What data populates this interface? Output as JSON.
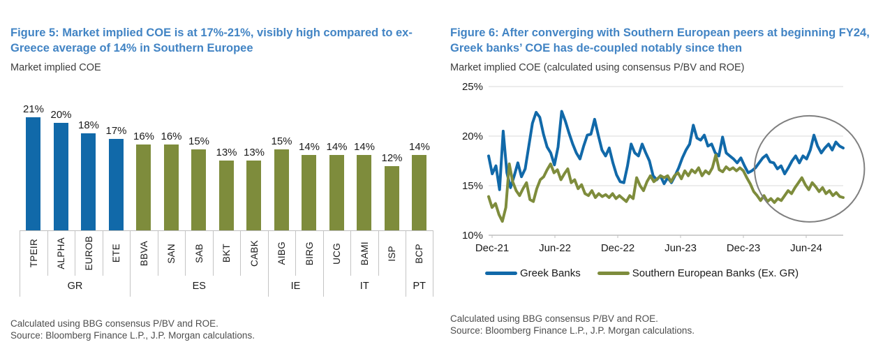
{
  "figure5": {
    "title": "Figure 5: Market implied COE is at 17%-21%, visibly high compared to ex-Greece average of 14% in Southern Europee",
    "subtitle": "Market implied COE",
    "footnotes": [
      "Calculated using BBG consensus P/BV and ROE.",
      "Source: Bloomberg Finance L.P., J.P. Morgan calculations."
    ],
    "chart_data": {
      "type": "bar",
      "title": "Market implied COE",
      "categories": [
        "TPEIR",
        "ALPHA",
        "EUROB",
        "ETE",
        "BBVA",
        "SAN",
        "SAB",
        "BKT",
        "CABK",
        "AIBG",
        "BIRG",
        "UCG",
        "BAMI",
        "ISP",
        "BCP"
      ],
      "values": [
        21,
        20,
        18,
        17,
        16,
        16,
        15,
        13,
        13,
        15,
        14,
        14,
        14,
        12,
        14
      ],
      "value_labels": [
        "21%",
        "20%",
        "18%",
        "17%",
        "16%",
        "16%",
        "15%",
        "13%",
        "13%",
        "15%",
        "14%",
        "14%",
        "14%",
        "12%",
        "14%"
      ],
      "groups": [
        {
          "label": "GR",
          "count": 4,
          "color": "#1169a9"
        },
        {
          "label": "ES",
          "count": 5,
          "color": "#7e8c3c"
        },
        {
          "label": "IE",
          "count": 2,
          "color": "#7e8c3c"
        },
        {
          "label": "IT",
          "count": 3,
          "color": "#7e8c3c"
        },
        {
          "label": "PT",
          "count": 1,
          "color": "#7e8c3c"
        }
      ],
      "ylim": [
        0,
        21
      ],
      "unit": "%"
    }
  },
  "figure6": {
    "title": "Figure 6: After converging with Southern European peers at beginning FY24, Greek banks’ COE has de-coupled notably since then",
    "subtitle": "Market implied COE (calculated using consensus P/BV and ROE)",
    "footnotes": [
      "Calculated using BBG consensus P/BV and ROE.",
      "Source: Bloomberg Finance L.P., J.P. Morgan calculations."
    ],
    "chart_data": {
      "type": "line",
      "title": "Market implied COE (calculated using consensus P/BV and ROE)",
      "x_ticks": [
        "Dec-21",
        "Jun-22",
        "Dec-22",
        "Jun-23",
        "Dec-23",
        "Jun-24"
      ],
      "ylim": [
        10,
        25
      ],
      "y_ticks": [
        10,
        15,
        20,
        25
      ],
      "y_tick_labels": [
        "10%",
        "15%",
        "20%",
        "25%"
      ],
      "grid": "horizontal",
      "legend_position": "bottom",
      "series": [
        {
          "name": "Greek Banks",
          "color": "#1169a9",
          "values": [
            18.0,
            16.2,
            17.0,
            14.6,
            20.5,
            16.3,
            14.8,
            16.0,
            17.3,
            15.9,
            16.7,
            19.0,
            21.3,
            22.4,
            21.9,
            20.2,
            18.9,
            18.3,
            17.1,
            18.9,
            22.5,
            21.5,
            20.3,
            19.2,
            18.3,
            17.7,
            19.0,
            20.1,
            20.2,
            21.7,
            20.1,
            18.6,
            18.0,
            18.8,
            17.3,
            16.1,
            15.4,
            15.3,
            17.0,
            19.2,
            18.3,
            18.0,
            19.2,
            18.3,
            17.5,
            16.0,
            15.6,
            16.0,
            15.2,
            15.8,
            15.3,
            16.0,
            16.8,
            17.8,
            18.6,
            19.2,
            21.1,
            19.8,
            19.6,
            20.1,
            19.0,
            19.2,
            18.3,
            18.0,
            19.9,
            18.3,
            18.0,
            17.7,
            17.3,
            17.8,
            17.0,
            16.3,
            16.5,
            16.8,
            17.3,
            17.8,
            18.1,
            17.4,
            17.3,
            16.7,
            17.0,
            16.2,
            16.8,
            17.5,
            18.0,
            17.3,
            18.0,
            17.7,
            18.6,
            20.1,
            19.0,
            18.3,
            18.8,
            19.2,
            18.6,
            19.4,
            19.0,
            18.8
          ]
        },
        {
          "name": "Southern European Banks (Ex. GR)",
          "color": "#7e8c3c",
          "values": [
            13.9,
            12.8,
            13.2,
            12.1,
            11.4,
            12.8,
            17.2,
            15.4,
            14.5,
            14.0,
            14.7,
            15.3,
            13.6,
            13.4,
            14.7,
            15.6,
            15.9,
            16.6,
            17.2,
            16.3,
            16.6,
            15.6,
            16.2,
            16.7,
            15.3,
            15.6,
            14.7,
            15.1,
            14.2,
            14.0,
            14.5,
            13.8,
            14.2,
            13.9,
            14.1,
            13.8,
            14.2,
            13.7,
            14.0,
            13.7,
            13.4,
            14.0,
            13.7,
            15.8,
            15.0,
            14.5,
            15.4,
            16.0,
            15.4,
            15.7,
            16.0,
            15.8,
            16.0,
            15.4,
            16.0,
            16.3,
            15.7,
            16.5,
            16.0,
            16.6,
            16.3,
            16.8,
            16.0,
            16.5,
            16.2,
            16.8,
            18.1,
            16.6,
            16.4,
            16.9,
            16.6,
            16.8,
            16.5,
            16.8,
            16.5,
            15.8,
            15.2,
            14.4,
            14.0,
            13.5,
            14.0,
            13.4,
            13.7,
            13.3,
            13.7,
            13.5,
            14.0,
            14.5,
            14.2,
            14.8,
            15.3,
            15.8,
            15.1,
            14.6,
            15.3,
            14.9,
            14.4,
            14.8,
            14.2,
            14.5,
            14.0,
            14.3,
            13.9,
            13.8
          ]
        }
      ],
      "highlight": {
        "shape": "circle",
        "color": "#7f7f7f",
        "x_frac_center": 0.905,
        "x_frac_radius": 0.155,
        "y_center_pct": 16.7,
        "y_radius_pct": 5.35
      }
    }
  }
}
